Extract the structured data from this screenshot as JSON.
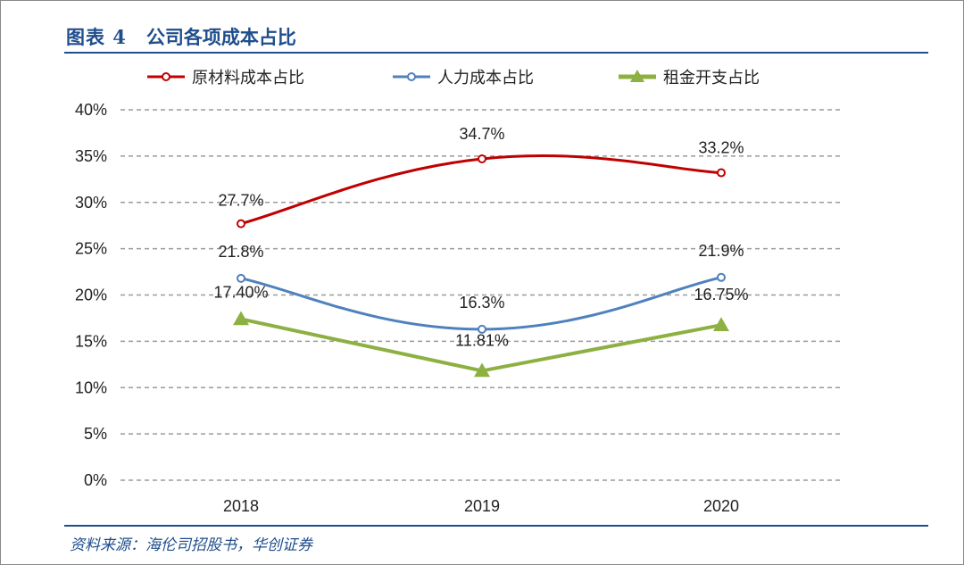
{
  "figure": {
    "label": "图表 4",
    "title": "公司各项成本占比",
    "source": "资料来源：海伦司招股书，华创证券"
  },
  "chart_data": {
    "type": "line",
    "title": "公司各项成本占比",
    "categories": [
      "2018",
      "2019",
      "2020"
    ],
    "ylim": [
      0,
      40
    ],
    "yticks": [
      "0%",
      "5%",
      "10%",
      "15%",
      "20%",
      "25%",
      "30%",
      "35%",
      "40%"
    ],
    "grid": true,
    "legend_position": "top",
    "series": [
      {
        "name": "原材料成本占比",
        "values": [
          27.7,
          34.7,
          33.2
        ],
        "labels": [
          "27.7%",
          "34.7%",
          "33.2%"
        ],
        "color": "#c00000",
        "marker": "circle"
      },
      {
        "name": "人力成本占比",
        "values": [
          21.8,
          16.3,
          21.9
        ],
        "labels": [
          "21.8%",
          "16.3%",
          "21.9%"
        ],
        "color": "#4f81bd",
        "marker": "circle"
      },
      {
        "name": "租金开支占比",
        "values": [
          17.4,
          11.81,
          16.75
        ],
        "labels": [
          "17.40%",
          "11.81%",
          "16.75%"
        ],
        "color": "#8db043",
        "marker": "triangle"
      }
    ]
  }
}
